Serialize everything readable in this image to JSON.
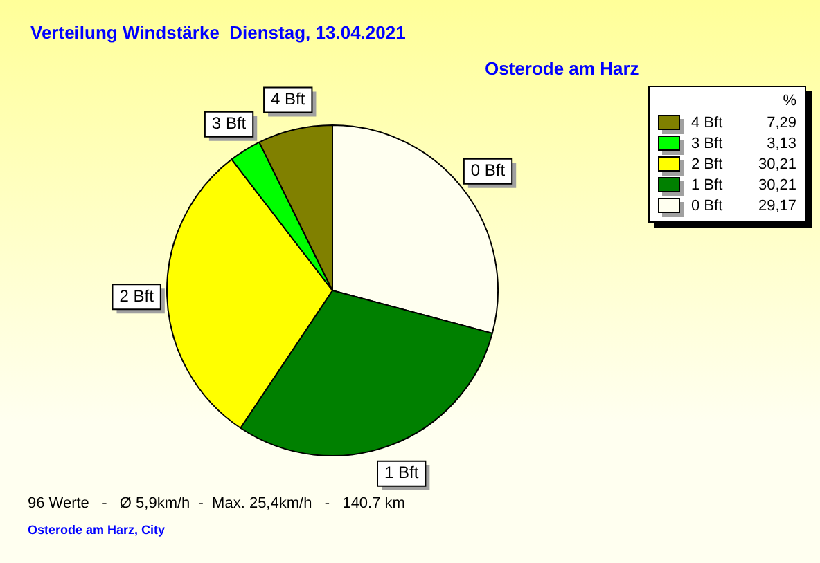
{
  "chart_data": {
    "type": "pie",
    "title": "Verteilung Windstärke  Dienstag, 13.04.2021",
    "subtitle": "Osterode am Harz",
    "categories": [
      "0 Bft",
      "1 Bft",
      "2 Bft",
      "3 Bft",
      "4 Bft"
    ],
    "values": [
      29.17,
      30.21,
      30.21,
      3.13,
      7.29
    ],
    "value_labels": [
      "29,17",
      "30,21",
      "30,21",
      "3,13",
      "7,29"
    ],
    "colors": [
      "#fffff0",
      "#008000",
      "#ffff00",
      "#00ff00",
      "#808000"
    ],
    "legend": "top right",
    "legend_title": "%",
    "annotations": [
      "96 Werte   -   Ø 5,9km/h  -  Max. 25,4km/h   -   140.7 km",
      "Osterode am Harz, City"
    ]
  }
}
